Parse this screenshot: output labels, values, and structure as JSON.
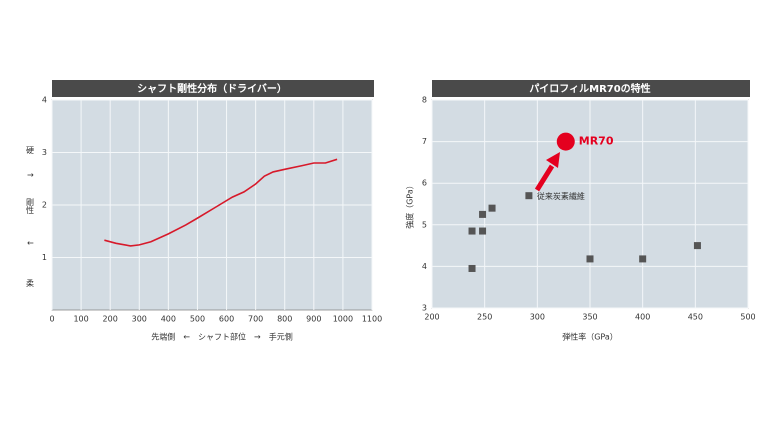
{
  "chart_data": [
    {
      "type": "line",
      "title": "シャフト剛性分布（ドライバー）",
      "xlabel": "先端側　←　シャフト部位　→　手元側",
      "ylabel": [
        "硬",
        "↑",
        "剛性",
        "↓",
        "柔"
      ],
      "x": [
        180,
        220,
        270,
        300,
        340,
        400,
        460,
        500,
        560,
        620,
        660,
        700,
        730,
        760,
        800,
        860,
        900,
        940,
        980
      ],
      "series": [
        {
          "color": "#d7192a",
          "values": [
            1.33,
            1.27,
            1.22,
            1.24,
            1.3,
            1.45,
            1.62,
            1.75,
            1.95,
            2.15,
            2.25,
            2.4,
            2.55,
            2.63,
            2.68,
            2.75,
            2.8,
            2.8,
            2.87
          ]
        }
      ],
      "xlim": [
        0,
        1100
      ],
      "xticks": [
        0,
        100,
        200,
        300,
        400,
        500,
        600,
        700,
        800,
        900,
        1000,
        1100
      ],
      "ylim": [
        0,
        4
      ],
      "yticks": [
        1,
        2,
        3,
        4
      ],
      "grid": true
    },
    {
      "type": "scatter",
      "title": "パイロフィルMR70の特性",
      "xlabel": "弾性率（GPa）",
      "ylabel": "強度（GPa）",
      "series": [
        {
          "name": "従来炭素繊維",
          "color": "#555555",
          "marker": "square",
          "x": [
            238,
            238,
            248,
            248,
            257,
            292,
            350,
            400,
            452
          ],
          "values": [
            3.95,
            4.85,
            4.85,
            5.25,
            5.4,
            5.7,
            4.18,
            4.18,
            4.5
          ]
        },
        {
          "name": "MR70",
          "color": "#e4001f",
          "marker": "circle",
          "x": [
            327
          ],
          "values": [
            7
          ]
        }
      ],
      "xlim": [
        200,
        500
      ],
      "xticks": [
        200,
        250,
        300,
        350,
        400,
        450,
        500
      ],
      "ylim": [
        3,
        8
      ],
      "yticks": [
        3,
        4,
        5,
        6,
        7,
        8
      ],
      "grid": true
    }
  ]
}
